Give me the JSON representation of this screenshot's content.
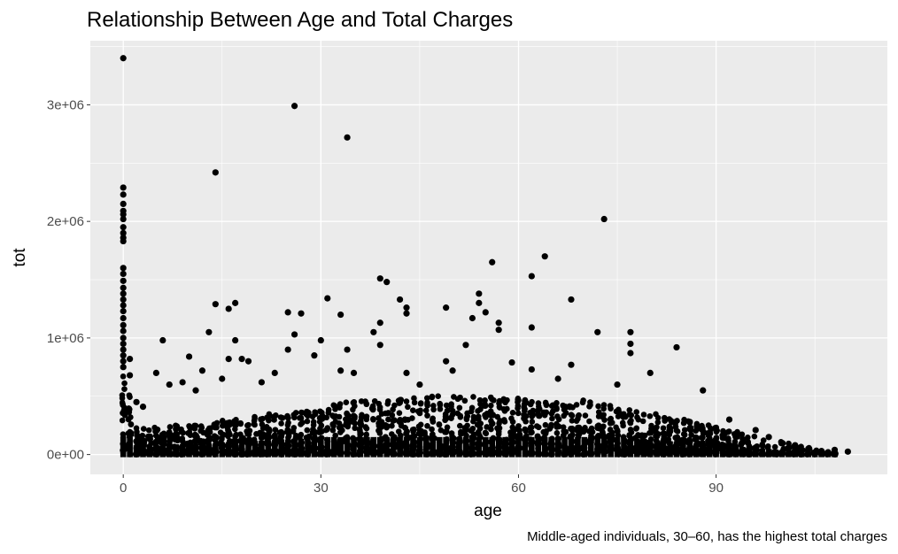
{
  "chart_data": {
    "type": "scatter",
    "title": "Relationship Between Age and Total Charges",
    "xlabel": "age",
    "ylabel": "tot",
    "caption": "Middle-aged individuals, 30–60, has the highest total charges",
    "xlim": [
      -5,
      116
    ],
    "ylim": [
      -170000,
      3550000
    ],
    "x_ticks": [
      {
        "value": 0,
        "label": "0"
      },
      {
        "value": 30,
        "label": "30"
      },
      {
        "value": 60,
        "label": "60"
      },
      {
        "value": 90,
        "label": "90"
      }
    ],
    "y_ticks": [
      {
        "value": 0,
        "label": "0e+00"
      },
      {
        "value": 1000000,
        "label": "1e+06"
      },
      {
        "value": 2000000,
        "label": "2e+06"
      },
      {
        "value": 3000000,
        "label": "3e+06"
      }
    ],
    "grid": true,
    "panel_background": "#ebebeb",
    "point_color": "#000000",
    "dense_region": {
      "age_min": 0,
      "age_max": 108,
      "note": "tightly packed points from 0 up to roughly 1e+05–5e+05 across ages"
    },
    "points": [
      [
        0,
        3400000
      ],
      [
        0,
        2290000
      ],
      [
        0,
        2230000
      ],
      [
        0,
        2150000
      ],
      [
        0,
        2090000
      ],
      [
        0,
        2060000
      ],
      [
        0,
        2020000
      ],
      [
        0,
        1950000
      ],
      [
        0,
        1900000
      ],
      [
        0,
        1860000
      ],
      [
        0,
        1830000
      ],
      [
        0,
        1600000
      ],
      [
        0,
        1550000
      ],
      [
        0,
        1490000
      ],
      [
        0,
        1430000
      ],
      [
        0,
        1380000
      ],
      [
        0,
        1330000
      ],
      [
        0,
        1280000
      ],
      [
        0,
        1230000
      ],
      [
        0,
        1170000
      ],
      [
        0,
        1110000
      ],
      [
        0,
        1060000
      ],
      [
        0,
        1000000
      ],
      [
        0,
        950000
      ],
      [
        0,
        900000
      ],
      [
        0,
        850000
      ],
      [
        0,
        800000
      ],
      [
        0,
        750000
      ],
      [
        1,
        820000
      ],
      [
        1,
        680000
      ],
      [
        2,
        450000
      ],
      [
        3,
        410000
      ],
      [
        5,
        700000
      ],
      [
        6,
        980000
      ],
      [
        7,
        600000
      ],
      [
        9,
        620000
      ],
      [
        10,
        840000
      ],
      [
        11,
        550000
      ],
      [
        12,
        720000
      ],
      [
        13,
        1050000
      ],
      [
        14,
        2420000
      ],
      [
        14,
        1290000
      ],
      [
        15,
        650000
      ],
      [
        16,
        1250000
      ],
      [
        16,
        820000
      ],
      [
        17,
        1300000
      ],
      [
        17,
        980000
      ],
      [
        18,
        820000
      ],
      [
        19,
        800000
      ],
      [
        21,
        620000
      ],
      [
        23,
        700000
      ],
      [
        25,
        1220000
      ],
      [
        25,
        900000
      ],
      [
        26,
        2990000
      ],
      [
        26,
        1030000
      ],
      [
        27,
        1210000
      ],
      [
        29,
        850000
      ],
      [
        30,
        980000
      ],
      [
        31,
        1340000
      ],
      [
        33,
        1200000
      ],
      [
        33,
        720000
      ],
      [
        34,
        2720000
      ],
      [
        34,
        900000
      ],
      [
        35,
        700000
      ],
      [
        38,
        1050000
      ],
      [
        39,
        1510000
      ],
      [
        39,
        1130000
      ],
      [
        39,
        940000
      ],
      [
        40,
        1480000
      ],
      [
        42,
        1330000
      ],
      [
        43,
        1260000
      ],
      [
        43,
        1210000
      ],
      [
        43,
        700000
      ],
      [
        45,
        600000
      ],
      [
        49,
        1260000
      ],
      [
        49,
        800000
      ],
      [
        50,
        720000
      ],
      [
        52,
        940000
      ],
      [
        53,
        1170000
      ],
      [
        54,
        1380000
      ],
      [
        54,
        1300000
      ],
      [
        55,
        1220000
      ],
      [
        56,
        1650000
      ],
      [
        57,
        1130000
      ],
      [
        57,
        1070000
      ],
      [
        59,
        790000
      ],
      [
        62,
        1530000
      ],
      [
        62,
        1090000
      ],
      [
        62,
        730000
      ],
      [
        64,
        1700000
      ],
      [
        66,
        650000
      ],
      [
        68,
        1330000
      ],
      [
        68,
        770000
      ],
      [
        72,
        1050000
      ],
      [
        73,
        2020000
      ],
      [
        75,
        600000
      ],
      [
        77,
        1050000
      ],
      [
        77,
        950000
      ],
      [
        77,
        870000
      ],
      [
        80,
        700000
      ],
      [
        84,
        920000
      ],
      [
        88,
        550000
      ],
      [
        92,
        300000
      ],
      [
        96,
        210000
      ],
      [
        98,
        150000
      ],
      [
        100,
        100000
      ],
      [
        102,
        80000
      ],
      [
        104,
        50000
      ],
      [
        106,
        30000
      ],
      [
        107,
        20000
      ],
      [
        108,
        40000
      ],
      [
        110,
        25000
      ]
    ]
  }
}
